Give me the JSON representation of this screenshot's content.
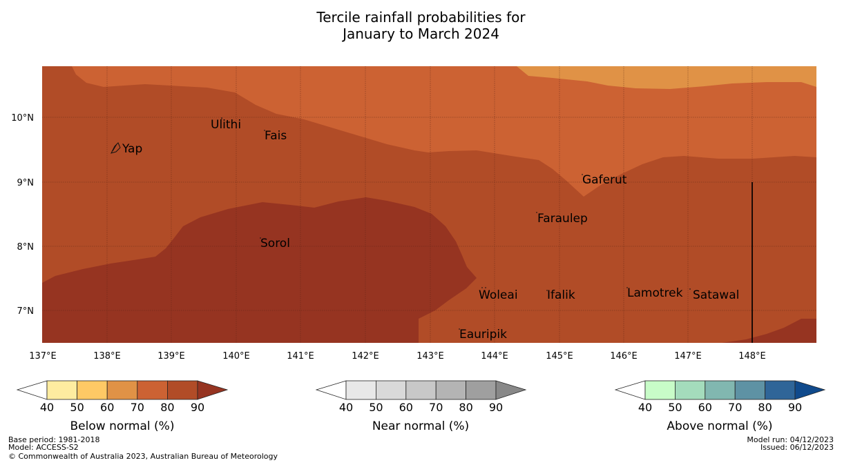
{
  "title": {
    "line1": "Tercile rainfall probabilities for",
    "line2": "January to March 2024"
  },
  "map": {
    "lon_range": [
      137,
      149
    ],
    "lat_range": [
      6.5,
      10.8
    ],
    "lon_ticks": [
      {
        "value": 137,
        "label": "137°E"
      },
      {
        "value": 138,
        "label": "138°E"
      },
      {
        "value": 139,
        "label": "139°E"
      },
      {
        "value": 140,
        "label": "140°E"
      },
      {
        "value": 141,
        "label": "141°E"
      },
      {
        "value": 142,
        "label": "142°E"
      },
      {
        "value": 143,
        "label": "143°E"
      },
      {
        "value": 144,
        "label": "144°E"
      },
      {
        "value": 145,
        "label": "145°E"
      },
      {
        "value": 146,
        "label": "146°E"
      },
      {
        "value": 147,
        "label": "147°E"
      },
      {
        "value": 148,
        "label": "148°E"
      }
    ],
    "lat_ticks": [
      {
        "value": 10,
        "label": "10°N"
      },
      {
        "value": 9,
        "label": "9°N"
      },
      {
        "value": 8,
        "label": "8°N"
      },
      {
        "value": 7,
        "label": "7°N"
      }
    ],
    "places": [
      {
        "name": "Ulithi",
        "lon": 139.7,
        "lat": 10.0
      },
      {
        "name": "Fais",
        "lon": 140.5,
        "lat": 9.8
      },
      {
        "name": "Yap",
        "lon": 138.1,
        "lat": 9.5
      },
      {
        "name": "Gaferut",
        "lon": 145.4,
        "lat": 9.1
      },
      {
        "name": "Faraulep",
        "lon": 144.7,
        "lat": 8.5
      },
      {
        "name": "Sorol",
        "lon": 140.4,
        "lat": 8.1
      },
      {
        "name": "Woleai",
        "lon": 143.8,
        "lat": 7.3
      },
      {
        "name": "Ifalik",
        "lon": 144.8,
        "lat": 7.3
      },
      {
        "name": "Lamotrek",
        "lon": 146.1,
        "lat": 7.3
      },
      {
        "name": "Satawal",
        "lon": 147.1,
        "lat": 7.3
      },
      {
        "name": "Eauripik",
        "lon": 143.5,
        "lat": 6.7
      }
    ]
  },
  "colorbars": [
    {
      "title": "Below normal (%)",
      "labels": [
        "40",
        "50",
        "60",
        "70",
        "80",
        "90"
      ],
      "colors": [
        "#ffffff",
        "#feeca0",
        "#fec965",
        "#e09246",
        "#cc6233",
        "#b14c27",
        "#963421"
      ]
    },
    {
      "title": "Near normal (%)",
      "labels": [
        "40",
        "50",
        "60",
        "70",
        "80",
        "90"
      ],
      "colors": [
        "#ffffff",
        "#e8e8e8",
        "#d9d9d9",
        "#c8c8c8",
        "#b4b4b4",
        "#9f9f9f",
        "#888888"
      ]
    },
    {
      "title": "Above normal (%)",
      "labels": [
        "40",
        "50",
        "60",
        "70",
        "80",
        "90"
      ],
      "colors": [
        "#ffffff",
        "#c8fcc8",
        "#a4dcbc",
        "#81b7b0",
        "#5e92a4",
        "#2f6598",
        "#104a8c"
      ]
    }
  ],
  "footer": {
    "base_period": "Base period: 1981-2018",
    "model": "Model: ACCESS-S2",
    "copyright": "© Commonwealth of Australia 2023, Australian Bureau of Meteorology",
    "model_run": "Model run: 04/12/2023",
    "issued": "Issued: 06/12/2023"
  }
}
